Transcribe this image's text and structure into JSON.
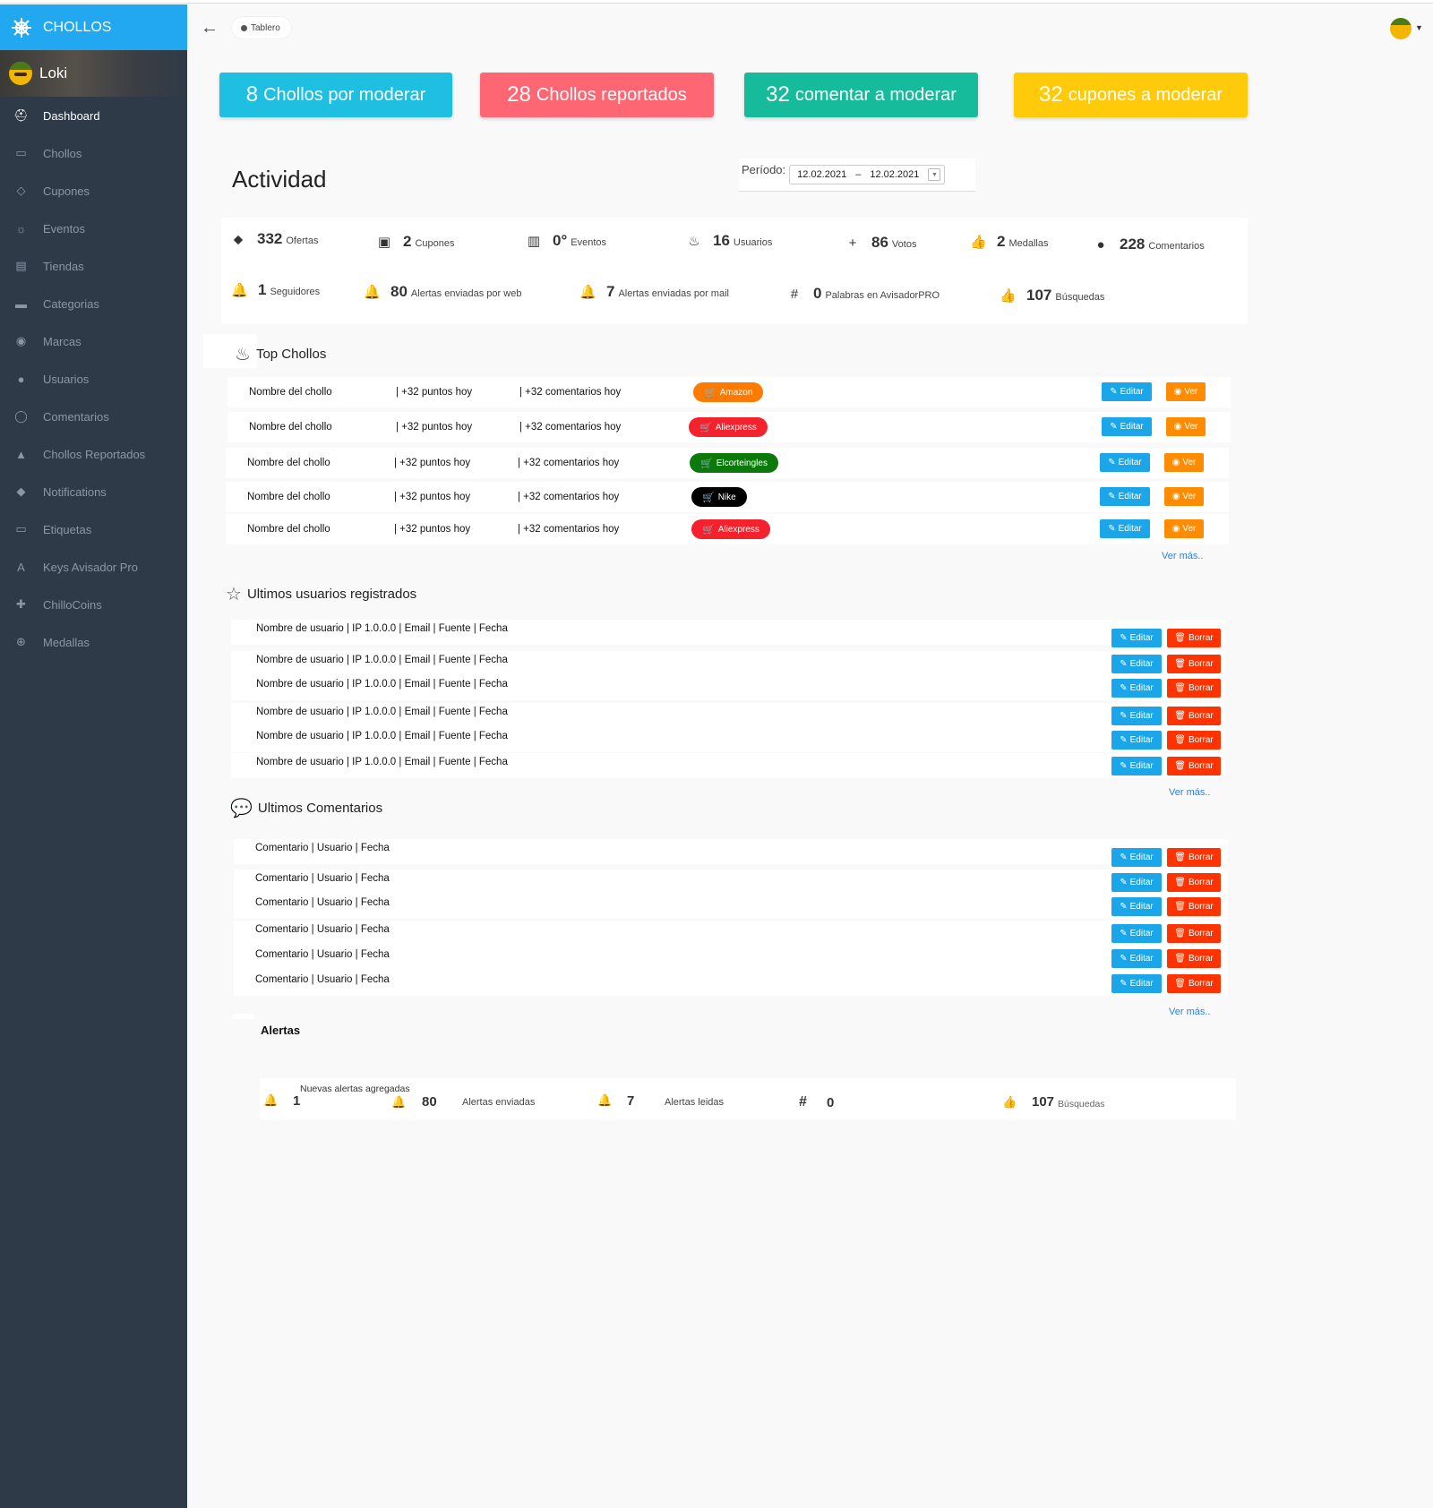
{
  "app": {
    "brand": "CHOLLOS",
    "user": "Loki"
  },
  "nav": [
    {
      "label": "Dashboard",
      "icon": "dashboard-icon",
      "glyph": "⛑",
      "active": true
    },
    {
      "label": "Chollos",
      "icon": "tag-icon",
      "glyph": "▭"
    },
    {
      "label": "Cupones",
      "icon": "coupon-icon",
      "glyph": "◇"
    },
    {
      "label": "Eventos",
      "icon": "lightbulb-icon",
      "glyph": "☼"
    },
    {
      "label": "Tiendas",
      "icon": "store-icon",
      "glyph": "▤"
    },
    {
      "label": "Categorias",
      "icon": "folder-icon",
      "glyph": "▬"
    },
    {
      "label": "Marcas",
      "icon": "brand-icon",
      "glyph": "◉"
    },
    {
      "label": "Usuarios",
      "icon": "user-icon",
      "glyph": "●"
    },
    {
      "label": "Comentarios",
      "icon": "comment-icon",
      "glyph": "◯"
    },
    {
      "label": "Chollos Reportados",
      "icon": "warning-icon",
      "glyph": "▲"
    },
    {
      "label": "Notifications",
      "icon": "bell-icon",
      "glyph": "◆"
    },
    {
      "label": "Etiquetas",
      "icon": "label-icon",
      "glyph": "▭"
    },
    {
      "label": "Keys Avisador Pro",
      "icon": "font-icon",
      "glyph": "A"
    },
    {
      "label": "ChilloCoins",
      "icon": "gift-icon",
      "glyph": "✚"
    },
    {
      "label": "Medallas",
      "icon": "medal-icon",
      "glyph": "⊕"
    }
  ],
  "header": {
    "breadcrumb": "Tablero"
  },
  "stat_boxes": [
    {
      "num": "8",
      "label": "Chollos por moderar",
      "color": "#1ebfe0"
    },
    {
      "num": "28",
      "label": "Chollos reportados",
      "color": "#fd6672"
    },
    {
      "num": "32",
      "label": "comentar a moderar",
      "color": "#16bb9c"
    },
    {
      "num": "32",
      "label": "cupones a moderar",
      "color": "#ffca0a"
    }
  ],
  "activity": {
    "title": "Actividad",
    "period_label": "Período:",
    "date_from": "12.02.2021",
    "date_sep": "–",
    "date_to": "12.02.2021",
    "metrics": [
      {
        "value": "332",
        "label": "Ofertas",
        "icon": "tag-icon",
        "glyph": "⬥"
      },
      {
        "value": "2",
        "label": "Cupones",
        "icon": "ticket-icon",
        "glyph": "▣"
      },
      {
        "value": "0°",
        "label": "Eventos",
        "icon": "bar-chart-icon",
        "glyph": "▥"
      },
      {
        "value": "16",
        "label": "Usuarios",
        "icon": "fire-icon",
        "glyph": "♨"
      },
      {
        "value": "86",
        "label": "Votos",
        "icon": "plus-icon",
        "glyph": "+"
      },
      {
        "value": "2",
        "label": "Medallas",
        "icon": "thumbs-up-icon",
        "glyph": "👍"
      },
      {
        "value": "228",
        "label": "Comentarios",
        "icon": "comment-icon",
        "glyph": "●"
      },
      {
        "value": "1",
        "label": "Seguidores",
        "icon": "bell-icon",
        "glyph": "🔔"
      },
      {
        "value": "80",
        "label": "Alertas enviadas por web",
        "icon": "bell-icon",
        "glyph": "🔔"
      },
      {
        "value": "7",
        "label": "Alertas enviadas por mail",
        "icon": "bell-icon",
        "glyph": "🔔"
      },
      {
        "value": "0",
        "label": "Palabras en AvisadorPRO",
        "icon": "hashtag-icon",
        "glyph": "#"
      },
      {
        "value": "107",
        "label": "Búsquedas",
        "icon": "thumbs-up-icon",
        "glyph": "👍"
      }
    ]
  },
  "top_chollos": {
    "title": "Top Chollos",
    "rows": [
      {
        "name": "Nombre del chollo",
        "points": "| +32 puntos hoy",
        "comments": "| +32 comentarios hoy",
        "store": "Amazon",
        "store_color": "#ff7a00"
      },
      {
        "name": "Nombre del chollo",
        "points": "| +32 puntos hoy",
        "comments": "| +32 comentarios hoy",
        "store": "Aliexpress",
        "store_color": "#f5222d"
      },
      {
        "name": "Nombre del chollo",
        "points": "| +32 puntos hoy",
        "comments": "| +32 comentarios hoy",
        "store": "Elcorteingles",
        "store_color": "#0b7a0b"
      },
      {
        "name": "Nombre del chollo",
        "points": "| +32 puntos hoy",
        "comments": "| +32 comentarios hoy",
        "store": "Nike",
        "store_color": "#000000"
      },
      {
        "name": "Nombre del chollo",
        "points": "| +32 puntos hoy",
        "comments": "| +32 comentarios hoy",
        "store": "Aliexpress",
        "store_color": "#f5222d"
      }
    ],
    "edit_label": "Editar",
    "view_label": "Ver",
    "more": "Ver más.."
  },
  "users": {
    "title": "Ultimos usuarios registrados",
    "rows": [
      "Nombre de usuario | IP 1.0.0.0  | Email | Fuente | Fecha",
      "Nombre de usuario | IP 1.0.0.0  | Email | Fuente | Fecha",
      "Nombre de usuario | IP 1.0.0.0  | Email | Fuente | Fecha",
      "Nombre de usuario | IP 1.0.0.0  | Email | Fuente | Fecha",
      "Nombre de usuario | IP 1.0.0.0  | Email | Fuente | Fecha",
      "Nombre de usuario | IP 1.0.0.0  | Email | Fuente | Fecha"
    ],
    "edit_label": "Editar",
    "delete_label": "Borrar",
    "more": "Ver más.."
  },
  "comments": {
    "title": "Ultimos Comentarios",
    "rows": [
      "Comentario | Usuario | Fecha",
      "Comentario | Usuario | Fecha",
      "Comentario | Usuario | Fecha",
      "Comentario | Usuario | Fecha",
      "Comentario | Usuario | Fecha",
      "Comentario | Usuario | Fecha"
    ],
    "edit_label": "Editar",
    "delete_label": "Borrar",
    "more": "Ver más.."
  },
  "alerts": {
    "title": "Alertas",
    "new_label": "Nuevas alertas agregadas",
    "new_value": "1",
    "sent_value": "80",
    "sent_label": "Alertas enviadas",
    "read_value": "7",
    "read_label": "Alertas leidas",
    "hash_value": "0",
    "search_value": "107",
    "search_label": "Búsquedas"
  }
}
